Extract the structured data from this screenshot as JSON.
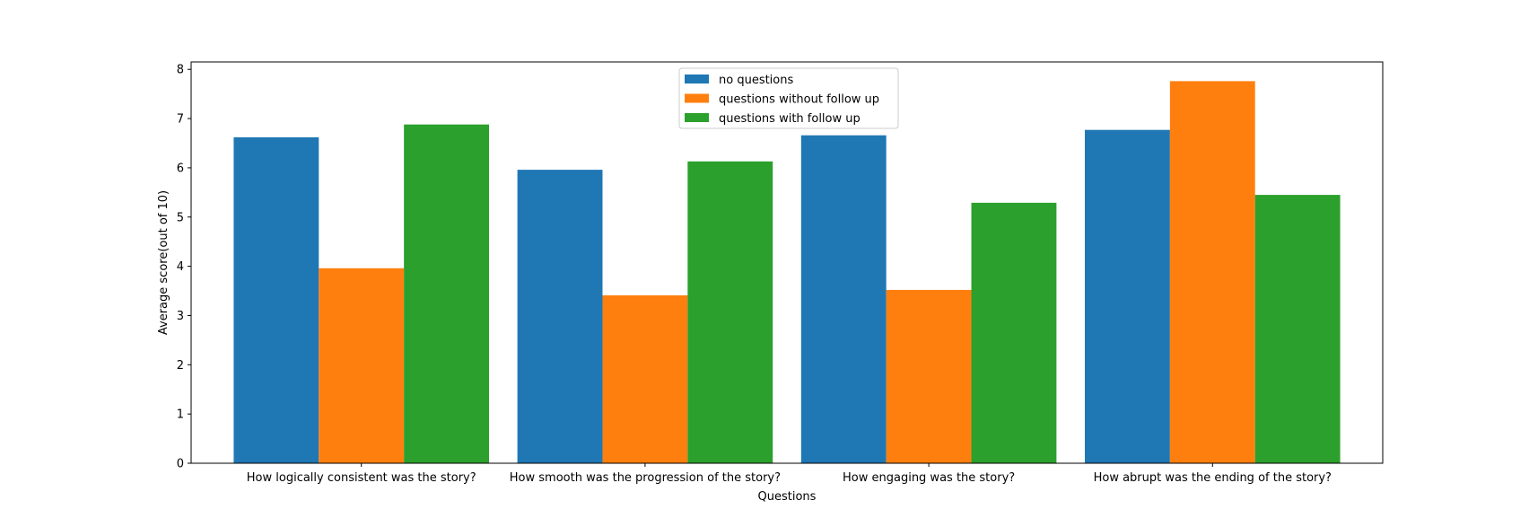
{
  "chart_data": {
    "type": "bar",
    "title": "",
    "xlabel": "Questions",
    "ylabel": "Average score(out of 10)",
    "categories": [
      "How logically consistent was the story?",
      "How smooth was the progression of the story?",
      "How engaging was the story?",
      "How abrupt was the ending of the story?"
    ],
    "series": [
      {
        "name": "no questions",
        "color": "#1f77b4",
        "values": [
          6.62,
          5.96,
          6.66,
          6.77
        ]
      },
      {
        "name": "questions without follow up",
        "color": "#ff7f0e",
        "values": [
          3.96,
          3.41,
          3.52,
          7.76
        ]
      },
      {
        "name": "questions with follow up",
        "color": "#2ca02c",
        "values": [
          6.88,
          6.13,
          5.29,
          5.45
        ]
      }
    ],
    "ylim": [
      0,
      8.15
    ],
    "yticks": [
      0,
      1,
      2,
      3,
      4,
      5,
      6,
      7,
      8
    ],
    "grid": false,
    "legend_position": "top-center"
  }
}
